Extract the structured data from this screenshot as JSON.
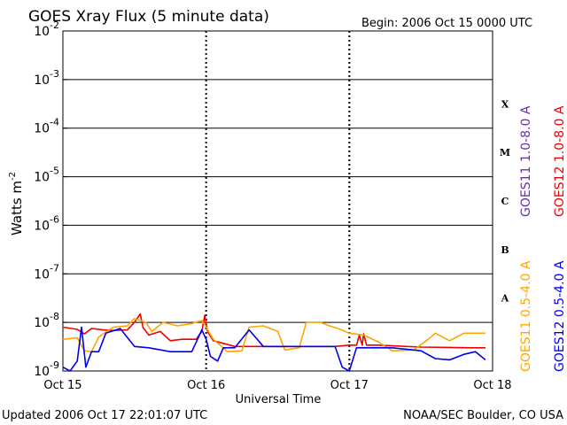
{
  "chart_data": {
    "type": "line",
    "title": "GOES Xray Flux (5 minute data)",
    "begin_label": "Begin:  2006 Oct 15 0000 UTC",
    "xlabel": "Universal Time",
    "ylabel": "Watts m",
    "ylabel_exp": "-2",
    "y_scale": "log",
    "ylim": [
      1e-09,
      0.01
    ],
    "xlim": [
      "Oct 15",
      "Oct 18"
    ],
    "x_ticks": [
      "Oct 15",
      "Oct 16",
      "Oct 17",
      "Oct 18"
    ],
    "y_tick_base": "10",
    "y_ticks": [
      "-2",
      "-3",
      "-4",
      "-5",
      "-6",
      "-7",
      "-8",
      "-9"
    ],
    "flare_classes": [
      "X",
      "M",
      "C",
      "B",
      "A"
    ],
    "grid": "horizontal at each decade, dashed vertical at day boundaries",
    "legend_placement": "right, rotated",
    "x_unit": "days since Oct 15 0000 UTC",
    "series": [
      {
        "name": "GOES11 1.0-8.0 A",
        "color": "#6b2fa8",
        "values": []
      },
      {
        "name": "GOES12 1.0-8.0 A",
        "color": "#ee0000",
        "values": [
          [
            0.0,
            8e-09
          ],
          [
            0.1,
            7.2e-09
          ],
          [
            0.15,
            5.8e-09
          ],
          [
            0.2,
            7.5e-09
          ],
          [
            0.28,
            7e-09
          ],
          [
            0.35,
            6.8e-09
          ],
          [
            0.45,
            7e-09
          ],
          [
            0.5,
            1e-08
          ],
          [
            0.54,
            1.5e-08
          ],
          [
            0.56,
            7.8e-09
          ],
          [
            0.6,
            5.5e-09
          ],
          [
            0.68,
            6.5e-09
          ],
          [
            0.75,
            4.2e-09
          ],
          [
            0.83,
            4.5e-09
          ],
          [
            0.93,
            4.5e-09
          ],
          [
            0.97,
            6.5e-09
          ],
          [
            0.99,
            1.4e-08
          ],
          [
            1.01,
            6.5e-09
          ],
          [
            1.05,
            4.2e-09
          ],
          [
            1.2,
            3.2e-09
          ],
          [
            1.3,
            3.2e-09
          ],
          [
            1.6,
            3.2e-09
          ],
          [
            1.9,
            3.2e-09
          ],
          [
            2.0,
            3.4e-09
          ],
          [
            2.05,
            3.4e-09
          ],
          [
            2.07,
            5.5e-09
          ],
          [
            2.09,
            3.4e-09
          ],
          [
            2.1,
            5.8e-09
          ],
          [
            2.12,
            3.4e-09
          ],
          [
            2.2,
            3.4e-09
          ],
          [
            2.5,
            3.1e-09
          ],
          [
            2.85,
            3e-09
          ],
          [
            2.95,
            3e-09
          ]
        ]
      },
      {
        "name": "GOES11 0.5-4.0 A",
        "color": "#ffa500",
        "values": [
          [
            0.0,
            4.5e-09
          ],
          [
            0.1,
            4.8e-09
          ],
          [
            0.15,
            2.6e-09
          ],
          [
            0.2,
            2.5e-09
          ],
          [
            0.25,
            5e-09
          ],
          [
            0.35,
            8e-09
          ],
          [
            0.45,
            8.5e-09
          ],
          [
            0.5,
            1.2e-08
          ],
          [
            0.58,
            1e-08
          ],
          [
            0.62,
            6.5e-09
          ],
          [
            0.7,
            1e-08
          ],
          [
            0.8,
            8.5e-09
          ],
          [
            0.9,
            9.5e-09
          ],
          [
            0.97,
            1.1e-08
          ],
          [
            1.0,
            8e-09
          ],
          [
            1.05,
            4.5e-09
          ],
          [
            1.15,
            2.5e-09
          ],
          [
            1.25,
            2.6e-09
          ],
          [
            1.3,
            8e-09
          ],
          [
            1.4,
            8.5e-09
          ],
          [
            1.5,
            6.5e-09
          ],
          [
            1.55,
            2.7e-09
          ],
          [
            1.65,
            3e-09
          ],
          [
            1.7,
            1e-08
          ],
          [
            1.8,
            1e-08
          ],
          [
            1.86,
            8.5e-09
          ],
          [
            1.92,
            7.5e-09
          ],
          [
            2.0,
            6e-09
          ],
          [
            2.1,
            5.5e-09
          ],
          [
            2.2,
            4e-09
          ],
          [
            2.3,
            2.6e-09
          ],
          [
            2.45,
            2.7e-09
          ],
          [
            2.55,
            4.5e-09
          ],
          [
            2.6,
            6e-09
          ],
          [
            2.7,
            4.2e-09
          ],
          [
            2.8,
            6e-09
          ],
          [
            2.95,
            6e-09
          ]
        ]
      },
      {
        "name": "GOES12 0.5-4.0 A",
        "color": "#0000ee",
        "values": [
          [
            0.0,
            1.2e-09
          ],
          [
            0.05,
            1e-09
          ],
          [
            0.1,
            1.6e-09
          ],
          [
            0.13,
            8e-09
          ],
          [
            0.16,
            1.2e-09
          ],
          [
            0.2,
            2.5e-09
          ],
          [
            0.25,
            2.5e-09
          ],
          [
            0.3,
            6e-09
          ],
          [
            0.4,
            7.5e-09
          ],
          [
            0.5,
            3.2e-09
          ],
          [
            0.6,
            3e-09
          ],
          [
            0.75,
            2.5e-09
          ],
          [
            0.9,
            2.5e-09
          ],
          [
            0.97,
            7e-09
          ],
          [
            1.0,
            4.5e-09
          ],
          [
            1.03,
            2e-09
          ],
          [
            1.08,
            1.6e-09
          ],
          [
            1.12,
            3e-09
          ],
          [
            1.2,
            3e-09
          ],
          [
            1.3,
            7e-09
          ],
          [
            1.4,
            3.2e-09
          ],
          [
            1.7,
            3.2e-09
          ],
          [
            1.9,
            3.2e-09
          ],
          [
            1.95,
            1.2e-09
          ],
          [
            2.0,
            1e-09
          ],
          [
            2.05,
            3e-09
          ],
          [
            2.3,
            3e-09
          ],
          [
            2.5,
            2.6e-09
          ],
          [
            2.6,
            1.8e-09
          ],
          [
            2.7,
            1.7e-09
          ],
          [
            2.8,
            2.2e-09
          ],
          [
            2.88,
            2.5e-09
          ],
          [
            2.95,
            1.7e-09
          ]
        ]
      }
    ]
  },
  "footer": {
    "updated": "Updated 2006 Oct 17 22:01:07 UTC",
    "source": "NOAA/SEC Boulder, CO USA"
  }
}
